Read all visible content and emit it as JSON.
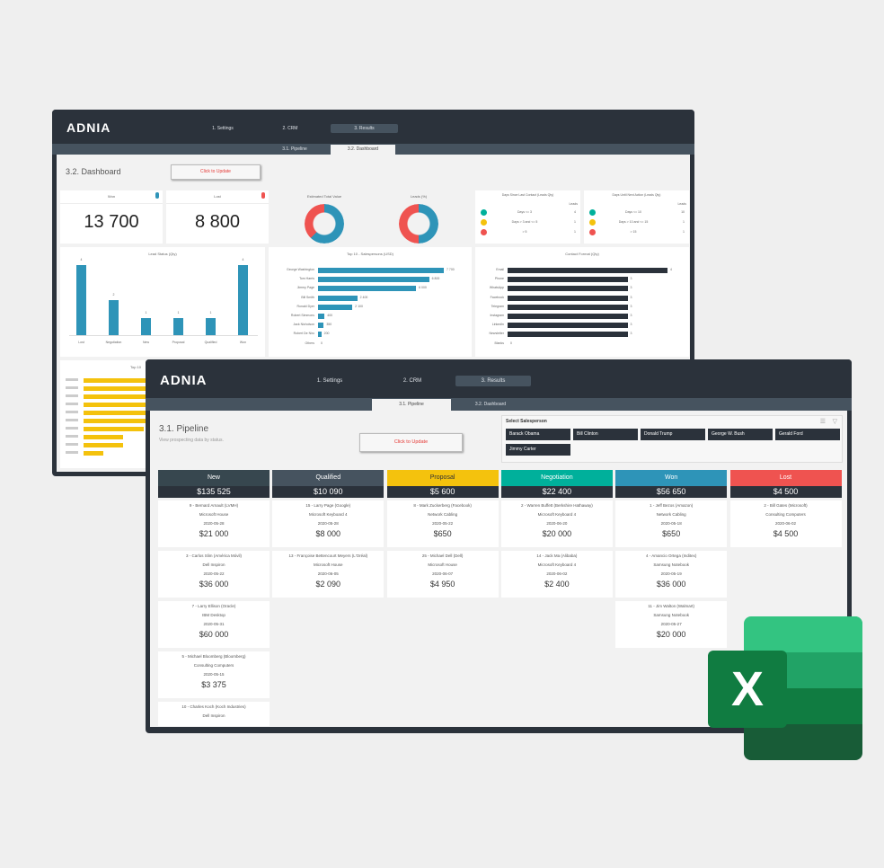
{
  "nav": {
    "tabs": [
      "1. Settings",
      "2. CRM",
      "3. Results"
    ],
    "active": 2,
    "subtabs": [
      "3.1. Pipeline",
      "3.2. Dashboard"
    ]
  },
  "logo": "ADNIA",
  "dashboard": {
    "title": "3.2. Dashboard",
    "update_button": "Click to Update",
    "kpis": [
      {
        "label": "Won",
        "value": "13 700",
        "color": "#2e94b8"
      },
      {
        "label": "Lost",
        "value": "8 800",
        "color": "#ef5350"
      }
    ],
    "donuts": [
      {
        "title": "Estimated Total Value",
        "share": 0.62
      },
      {
        "title": "Leads (%)",
        "share": 0.5
      }
    ],
    "tables": [
      {
        "title": "Days Since Last Contact (Leads Qty)",
        "col": "Leads",
        "rows": [
          {
            "label": "Days <= 3",
            "value": "4",
            "color": "#00b09b"
          },
          {
            "label": "Days > 3 and <= 5",
            "value": "1",
            "color": "#f4c20d"
          },
          {
            "label": "> 5",
            "value": "1",
            "color": "#ef5350"
          }
        ]
      },
      {
        "title": "Days Until Next Action (Leads Qty)",
        "col": "Leads",
        "rows": [
          {
            "label": "Days <= 10",
            "value": "10",
            "color": "#00b09b"
          },
          {
            "label": "Days > 10 and <= 15",
            "value": "1",
            "color": "#f4c20d"
          },
          {
            "label": "> 15",
            "value": "1",
            "color": "#ef5350"
          }
        ]
      }
    ],
    "status_chart": {
      "title": "Lead Status (Qty)",
      "categories": [
        "Lost",
        "Negotiation",
        "New",
        "Proposal",
        "Qualified",
        "Won"
      ],
      "values": [
        4,
        2,
        1,
        1,
        1,
        4
      ],
      "color": "#2e94b8"
    },
    "sales_chart": {
      "title": "Top 10 - Salespersons (USD)",
      "categories": [
        "George Washington",
        "Tom Harris",
        "Jimmy Page",
        "Bill Smith",
        "Ronald Dyer",
        "Robert Simmons",
        "Jack Nicholson",
        "Robert De Niro",
        "Others"
      ],
      "values": [
        7700,
        6800,
        6000,
        2400,
        2100,
        400,
        350,
        200,
        0
      ],
      "labels": [
        "7 700",
        "6 800",
        "6 000",
        "2 400",
        "2 100",
        "400",
        "350",
        "200",
        "0"
      ],
      "color": "#2e94b8"
    },
    "contact_chart": {
      "title": "Contact Format (Qty)",
      "categories": [
        "Email",
        "Phone",
        "WhatsApp",
        "Facebook",
        "Telegram",
        "Instagram",
        "LinkedIn",
        "Newsletter",
        "Blanks"
      ],
      "values": [
        4,
        3,
        3,
        3,
        3,
        3,
        3,
        3,
        0
      ],
      "color": "#2b323b"
    },
    "partial_chart": {
      "title": "Top 10",
      "values": [
        9,
        8,
        8,
        7,
        6,
        4,
        3,
        2,
        2,
        1
      ],
      "color": "#f4c20d"
    }
  },
  "pipeline": {
    "title": "3.1. Pipeline",
    "subtitle": "View prospecting data by status.",
    "update_button": "Click to Update",
    "slicer": {
      "title": "Select Salesperson",
      "items": [
        "Barack Obama",
        "Bill Clinton",
        "Donald Trump",
        "George W. Bush",
        "Gerald Ford",
        "Jimmy Carter"
      ]
    },
    "columns": [
      {
        "name": "New",
        "total": "$135 525",
        "color": "#37474f",
        "cards": [
          {
            "title": "9 - Bernard Arnault (LVMH)",
            "product": "Microsoft House",
            "date": "2020-05-28",
            "amount": "$21 000"
          },
          {
            "title": "3 - Carlos Slim (América Móvil)",
            "product": "Dell Inspiron",
            "date": "2020-05-22",
            "amount": "$36 000"
          },
          {
            "title": "7 - Larry Ellison (Oracle)",
            "product": "IBM Desktop",
            "date": "2020-05-31",
            "amount": "$60 000"
          },
          {
            "title": "5 - Michael Bloomberg (Bloomberg)",
            "product": "Consulting Computers",
            "date": "2020-05-15",
            "amount": "$3 375"
          },
          {
            "title": "10 - Charles Koch (Koch Industries)",
            "product": "Dell Inspiron",
            "date": "",
            "amount": ""
          }
        ]
      },
      {
        "name": "Qualified",
        "total": "$10 090",
        "color": "#46535f",
        "cards": [
          {
            "title": "15 - Larry Page (Google)",
            "product": "Microsoft Keyboard 4",
            "date": "2020-05-28",
            "amount": "$8 000"
          },
          {
            "title": "13 - Françoise Bettencourt Meyers (L'Oréal)",
            "product": "Microsoft House",
            "date": "2020-06-05",
            "amount": "$2 090"
          }
        ]
      },
      {
        "name": "Proposal",
        "total": "$5 600",
        "color": "#f4c20d",
        "cards": [
          {
            "title": "8 - Mark Zuckerberg (Facebook)",
            "product": "Network Cabling",
            "date": "2020-05-22",
            "amount": "$650"
          },
          {
            "title": "25 - Michael Dell (Dell)",
            "product": "Microsoft House",
            "date": "2020-06-07",
            "amount": "$4 950"
          }
        ]
      },
      {
        "name": "Negotiation",
        "total": "$22 400",
        "color": "#00b09b",
        "cards": [
          {
            "title": "2 - Warren Buffett (Berkshire Hathaway)",
            "product": "Microsoft Keyboard 4",
            "date": "2020-06-20",
            "amount": "$20 000"
          },
          {
            "title": "14 - Jack Ma (Alibaba)",
            "product": "Microsoft Keyboard 4",
            "date": "2020-06-02",
            "amount": "$2 400"
          }
        ]
      },
      {
        "name": "Won",
        "total": "$56 650",
        "color": "#2e94b8",
        "cards": [
          {
            "title": "1 - Jeff Bezos (Amazon)",
            "product": "Network Cabling",
            "date": "2020-05-18",
            "amount": "$650"
          },
          {
            "title": "4 - Amancio Ortega (Inditex)",
            "product": "Samsung Notebook",
            "date": "2020-05-19",
            "amount": "$36 000"
          },
          {
            "title": "11 - Jim Walton (Walmart)",
            "product": "Samsung Notebook",
            "date": "2020-05-27",
            "amount": "$20 000"
          }
        ]
      },
      {
        "name": "Lost",
        "total": "$4 500",
        "color": "#ef5350",
        "cards": [
          {
            "title": "2 - Bill Gates (Microsoft)",
            "product": "Consulting Computers",
            "date": "2020-06-02",
            "amount": "$4 500"
          }
        ]
      }
    ]
  },
  "excel_logo": {
    "letter": "X",
    "colors": [
      "#33c481",
      "#21a366",
      "#107c41",
      "#185c37"
    ]
  }
}
